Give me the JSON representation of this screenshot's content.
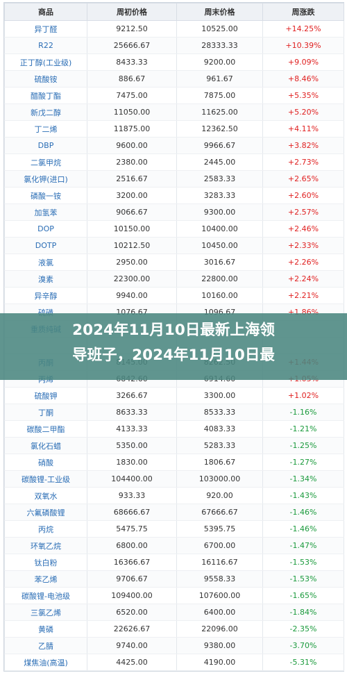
{
  "table": {
    "headers": [
      "商品",
      "周初价格",
      "周末价格",
      "周涨跌"
    ],
    "rows": [
      [
        "异丁醛",
        "9212.50",
        "10525.00",
        "+14.25%"
      ],
      [
        "R22",
        "25666.67",
        "28333.33",
        "+10.39%"
      ],
      [
        "正丁醇(工业级)",
        "8433.33",
        "9200.00",
        "+9.09%"
      ],
      [
        "硫酸铵",
        "886.67",
        "961.67",
        "+8.46%"
      ],
      [
        "醋酸丁酯",
        "7475.00",
        "7875.00",
        "+5.35%"
      ],
      [
        "新戊二醇",
        "11050.00",
        "11625.00",
        "+5.20%"
      ],
      [
        "丁二烯",
        "11875.00",
        "12362.50",
        "+4.11%"
      ],
      [
        "DBP",
        "9600.00",
        "9966.67",
        "+3.82%"
      ],
      [
        "二氯甲烷",
        "2380.00",
        "2445.00",
        "+2.73%"
      ],
      [
        "氯化钾(进口)",
        "2516.67",
        "2583.33",
        "+2.65%"
      ],
      [
        "磷酸一铵",
        "3200.00",
        "3283.33",
        "+2.60%"
      ],
      [
        "加氢苯",
        "9066.67",
        "9300.00",
        "+2.57%"
      ],
      [
        "DOP",
        "10150.00",
        "10400.00",
        "+2.46%"
      ],
      [
        "DOTP",
        "10212.50",
        "10450.00",
        "+2.33%"
      ],
      [
        "液氯",
        "2950.00",
        "3016.67",
        "+2.26%"
      ],
      [
        "溴素",
        "22300.00",
        "22800.00",
        "+2.24%"
      ],
      [
        "异辛醇",
        "9940.00",
        "10160.00",
        "+2.21%"
      ],
      [
        "硫磺",
        "1076.67",
        "1096.67",
        "+1.86%"
      ],
      [
        "重质纯碱",
        "",
        "",
        ""
      ],
      [
        "",
        "",
        "",
        ""
      ],
      [
        "丙酮",
        "8145.00",
        "8262.50",
        "+1.44%"
      ],
      [
        "丙烯",
        "6842.60",
        "6914.60",
        "+1.05%"
      ],
      [
        "硫酸钾",
        "3266.67",
        "3300.00",
        "+1.02%"
      ],
      [
        "丁酮",
        "8633.33",
        "8533.33",
        "-1.16%"
      ],
      [
        "碳酸二甲酯",
        "4133.33",
        "4083.33",
        "-1.21%"
      ],
      [
        "氯化石蜡",
        "5350.00",
        "5283.33",
        "-1.25%"
      ],
      [
        "硝酸",
        "1830.00",
        "1806.67",
        "-1.27%"
      ],
      [
        "碳酸锂-工业级",
        "104400.00",
        "103000.00",
        "-1.34%"
      ],
      [
        "双氧水",
        "933.33",
        "920.00",
        "-1.43%"
      ],
      [
        "六氟磷酸锂",
        "68666.67",
        "67666.67",
        "-1.46%"
      ],
      [
        "丙烷",
        "5475.75",
        "5395.75",
        "-1.46%"
      ],
      [
        "环氧乙烷",
        "6800.00",
        "6700.00",
        "-1.47%"
      ],
      [
        "钛白粉",
        "16366.67",
        "16116.67",
        "-1.53%"
      ],
      [
        "苯乙烯",
        "9706.67",
        "9558.33",
        "-1.53%"
      ],
      [
        "碳酸锂-电池级",
        "109400.00",
        "107600.00",
        "-1.65%"
      ],
      [
        "三氯乙烯",
        "6520.00",
        "6400.00",
        "-1.84%"
      ],
      [
        "黄磷",
        "22626.67",
        "22096.00",
        "-2.35%"
      ],
      [
        "乙腈",
        "9740.00",
        "9380.00",
        "-3.70%"
      ],
      [
        "煤焦油(高温)",
        "4425.00",
        "4190.00",
        "-5.31%"
      ]
    ]
  },
  "overlay": {
    "line1": "2024年11月10日最新上海领",
    "line2": "导班子，2024年11月10日最"
  },
  "colors": {
    "up": "#e02020",
    "down": "#1a9a3c",
    "name": "#2a6db5",
    "overlay_bg": "#4a867f"
  }
}
